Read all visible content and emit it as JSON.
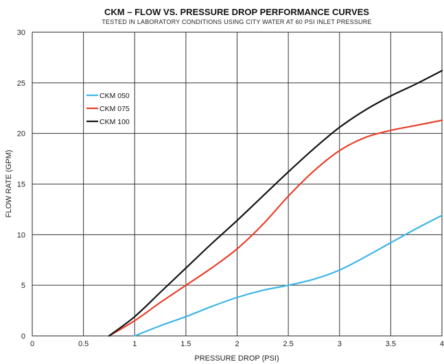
{
  "chart_data": {
    "type": "line",
    "title": "CKM – FLOW VS. PRESSURE DROP PERFORMANCE CURVES",
    "subtitle": "TESTED IN LABORATORY CONDITIONS USING CITY WATER AT 60 PSI INLET PRESSURE",
    "xlabel": "PRESSURE DROP (PSI)",
    "ylabel": "FLOW RATE (GPM)",
    "xlim": [
      0,
      4
    ],
    "ylim": [
      0,
      30
    ],
    "xticks": [
      0,
      0.5,
      1,
      1.5,
      2,
      2.5,
      3,
      3.5,
      4
    ],
    "xtick_labels": [
      "0",
      "0.5",
      "1",
      "1.5",
      "2",
      "2.5",
      "3",
      "3.5",
      "4"
    ],
    "yticks": [
      0,
      5,
      10,
      15,
      20,
      25,
      30
    ],
    "ytick_labels": [
      "0",
      "5",
      "10",
      "15",
      "20",
      "25",
      "30"
    ],
    "grid": true,
    "legend_position": "upper-left",
    "series": [
      {
        "name": "CKM 050",
        "color": "#3bb5e6",
        "x": [
          1.0,
          1.25,
          1.5,
          1.75,
          2.0,
          2.25,
          2.5,
          2.75,
          3.0,
          3.25,
          3.5,
          3.75,
          4.0
        ],
        "y": [
          0.0,
          1.0,
          1.9,
          2.9,
          3.8,
          4.5,
          5.0,
          5.6,
          6.5,
          7.8,
          9.2,
          10.6,
          11.9
        ]
      },
      {
        "name": "CKM 075",
        "color": "#e8402a",
        "x": [
          0.75,
          1.0,
          1.25,
          1.5,
          1.75,
          2.0,
          2.25,
          2.5,
          2.75,
          3.0,
          3.25,
          3.5,
          3.75,
          4.0
        ],
        "y": [
          0.0,
          1.5,
          3.3,
          5.0,
          6.7,
          8.6,
          11.0,
          13.8,
          16.3,
          18.3,
          19.6,
          20.3,
          20.8,
          21.3
        ]
      },
      {
        "name": "CKM 100",
        "color": "#111111",
        "x": [
          0.75,
          1.0,
          1.25,
          1.5,
          1.75,
          2.0,
          2.25,
          2.5,
          2.75,
          3.0,
          3.25,
          3.5,
          3.75,
          4.0
        ],
        "y": [
          0.0,
          1.9,
          4.3,
          6.7,
          9.1,
          11.4,
          13.8,
          16.2,
          18.5,
          20.6,
          22.3,
          23.7,
          24.9,
          26.2
        ]
      }
    ]
  }
}
